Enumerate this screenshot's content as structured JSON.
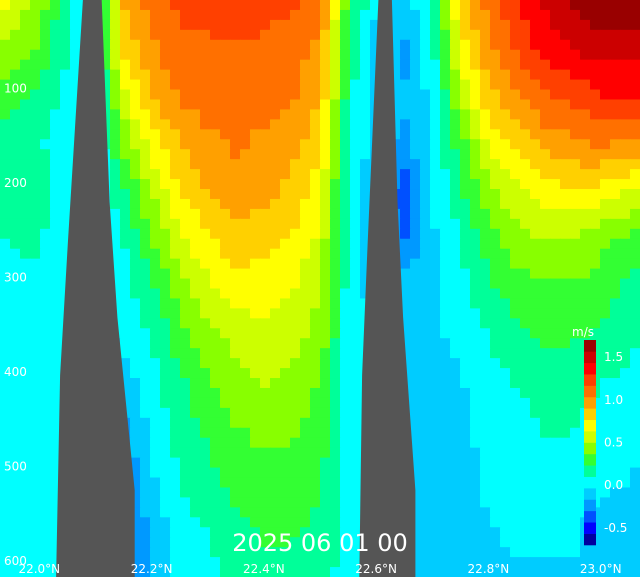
{
  "chart_data": {
    "type": "heatmap",
    "title": "2025 06 01 00",
    "xlabel": "",
    "ylabel": "",
    "x_ticks": [
      "22.0°N",
      "22.2°N",
      "22.4°N",
      "22.6°N",
      "22.8°N",
      "23.0°N"
    ],
    "x_tick_values": [
      22.0,
      22.2,
      22.4,
      22.6,
      22.8,
      23.0
    ],
    "xlim": [
      21.93,
      23.07
    ],
    "y_ticks": [
      "100",
      "200",
      "300",
      "400",
      "500",
      "600"
    ],
    "y_tick_values": [
      100,
      200,
      300,
      400,
      500,
      600
    ],
    "ylim": [
      0,
      600
    ],
    "y_inverted": true,
    "colorbar": {
      "unit": "m/s",
      "ticks": [
        "1.5",
        "1.0",
        "0.5",
        "0.0",
        "-0.5"
      ],
      "tick_values": [
        1.5,
        1.0,
        0.5,
        0.0,
        -0.5
      ],
      "range": [
        -0.7,
        1.7
      ],
      "colors": [
        "#0000a0",
        "#0000ff",
        "#0050ff",
        "#0099ff",
        "#00ccff",
        "#00ffff",
        "#00ff99",
        "#33ff33",
        "#88ff00",
        "#ccff00",
        "#ffff00",
        "#ffd000",
        "#ffa000",
        "#ff7000",
        "#ff4000",
        "#ff0000",
        "#cc0000",
        "#990000"
      ]
    },
    "contour_interval": 0.1,
    "negative_contours": "dashed",
    "fill_color": "#555555",
    "velocity_field": {
      "lat": [
        21.93,
        22.0,
        22.05,
        22.1,
        22.15,
        22.2,
        22.25,
        22.3,
        22.35,
        22.4,
        22.45,
        22.5,
        22.55,
        22.6,
        22.65,
        22.7,
        22.75,
        22.8,
        22.85,
        22.9,
        22.95,
        23.0,
        23.07
      ],
      "depth": [
        0,
        50,
        100,
        150,
        200,
        250,
        300,
        350,
        400,
        450,
        500,
        550,
        600
      ],
      "values": [
        [
          0.7,
          0.45,
          0.1,
          0.0,
          0.9,
          1.1,
          1.2,
          1.2,
          1.25,
          1.2,
          1.2,
          1.1,
          0.3,
          0.0,
          -0.1,
          0.1,
          0.8,
          1.1,
          1.3,
          1.45,
          1.6,
          1.7,
          1.7
        ],
        [
          0.5,
          0.35,
          0.1,
          0.0,
          0.8,
          1.0,
          1.15,
          1.15,
          1.15,
          1.15,
          1.1,
          1.0,
          0.2,
          -0.1,
          -0.2,
          0.05,
          0.7,
          1.0,
          1.2,
          1.35,
          1.45,
          1.5,
          1.5
        ],
        [
          0.3,
          0.2,
          0.05,
          -0.05,
          0.6,
          0.9,
          1.05,
          1.1,
          1.1,
          1.1,
          1.05,
          0.9,
          0.15,
          -0.1,
          -0.15,
          0.0,
          0.5,
          0.85,
          1.0,
          1.15,
          1.2,
          1.3,
          1.3
        ],
        [
          0.2,
          0.12,
          0.0,
          -0.05,
          0.4,
          0.7,
          0.9,
          1.0,
          1.05,
          1.0,
          0.95,
          0.8,
          0.1,
          -0.1,
          -0.2,
          0.0,
          0.3,
          0.65,
          0.8,
          0.95,
          1.0,
          1.05,
          1.0
        ],
        [
          0.1,
          0.15,
          0.0,
          -0.05,
          0.2,
          0.5,
          0.75,
          0.9,
          1.0,
          0.95,
          0.85,
          0.7,
          0.05,
          -0.15,
          -0.4,
          -0.05,
          0.2,
          0.45,
          0.6,
          0.7,
          0.75,
          0.7,
          0.6
        ],
        [
          0.1,
          0.12,
          0.0,
          -0.05,
          0.1,
          0.35,
          0.6,
          0.75,
          0.85,
          0.8,
          0.75,
          0.6,
          0.05,
          -0.15,
          -0.3,
          -0.05,
          0.1,
          0.3,
          0.45,
          0.5,
          0.5,
          0.4,
          0.3
        ],
        [
          0.05,
          0.08,
          0.0,
          -0.05,
          0.05,
          0.2,
          0.45,
          0.6,
          0.7,
          0.7,
          0.65,
          0.5,
          0.05,
          -0.1,
          -0.1,
          -0.05,
          0.05,
          0.2,
          0.3,
          0.35,
          0.35,
          0.3,
          0.15
        ],
        [
          0.05,
          0.05,
          0.0,
          -0.1,
          0.0,
          0.1,
          0.3,
          0.45,
          0.55,
          0.6,
          0.55,
          0.45,
          0.05,
          -0.05,
          -0.05,
          -0.05,
          0.0,
          0.1,
          0.2,
          0.25,
          0.25,
          0.2,
          0.1
        ],
        [
          0.05,
          0.05,
          0.0,
          -0.15,
          -0.1,
          0.05,
          0.2,
          0.35,
          0.45,
          0.5,
          0.45,
          0.35,
          0.05,
          -0.05,
          -0.05,
          -0.1,
          -0.05,
          0.05,
          0.1,
          0.15,
          0.15,
          0.1,
          0.05
        ],
        [
          0.05,
          0.05,
          0.0,
          -0.2,
          -0.2,
          0.0,
          0.15,
          0.25,
          0.35,
          0.4,
          0.38,
          0.3,
          0.05,
          -0.05,
          -0.05,
          -0.1,
          -0.05,
          0.0,
          0.05,
          0.1,
          0.1,
          0.05,
          0.0
        ],
        [
          0.05,
          0.05,
          0.0,
          -0.2,
          -0.3,
          -0.05,
          0.1,
          0.2,
          0.28,
          0.32,
          0.32,
          0.25,
          0.05,
          -0.05,
          -0.05,
          -0.15,
          -0.1,
          0.0,
          0.05,
          0.05,
          0.05,
          0.0,
          -0.05
        ],
        [
          0.05,
          0.05,
          0.0,
          -0.15,
          -0.3,
          -0.15,
          0.05,
          0.1,
          0.2,
          0.25,
          0.25,
          0.2,
          0.05,
          -0.05,
          -0.05,
          -0.15,
          -0.1,
          -0.05,
          0.0,
          0.0,
          0.0,
          -0.1,
          -0.1
        ],
        [
          0.05,
          0.05,
          0.0,
          -0.1,
          -0.25,
          -0.15,
          0.0,
          0.05,
          0.15,
          0.2,
          0.2,
          0.15,
          0.05,
          -0.05,
          -0.05,
          -0.1,
          -0.1,
          -0.05,
          -0.05,
          -0.05,
          -0.05,
          -0.15,
          -0.1
        ]
      ]
    },
    "masked_regions": [
      {
        "name": "topography-left",
        "lat_range": [
          22.03,
          22.17
        ],
        "depth_top": 0
      },
      {
        "name": "topography-right",
        "lat_range": [
          22.57,
          22.67
        ],
        "depth_top": 0
      }
    ]
  }
}
